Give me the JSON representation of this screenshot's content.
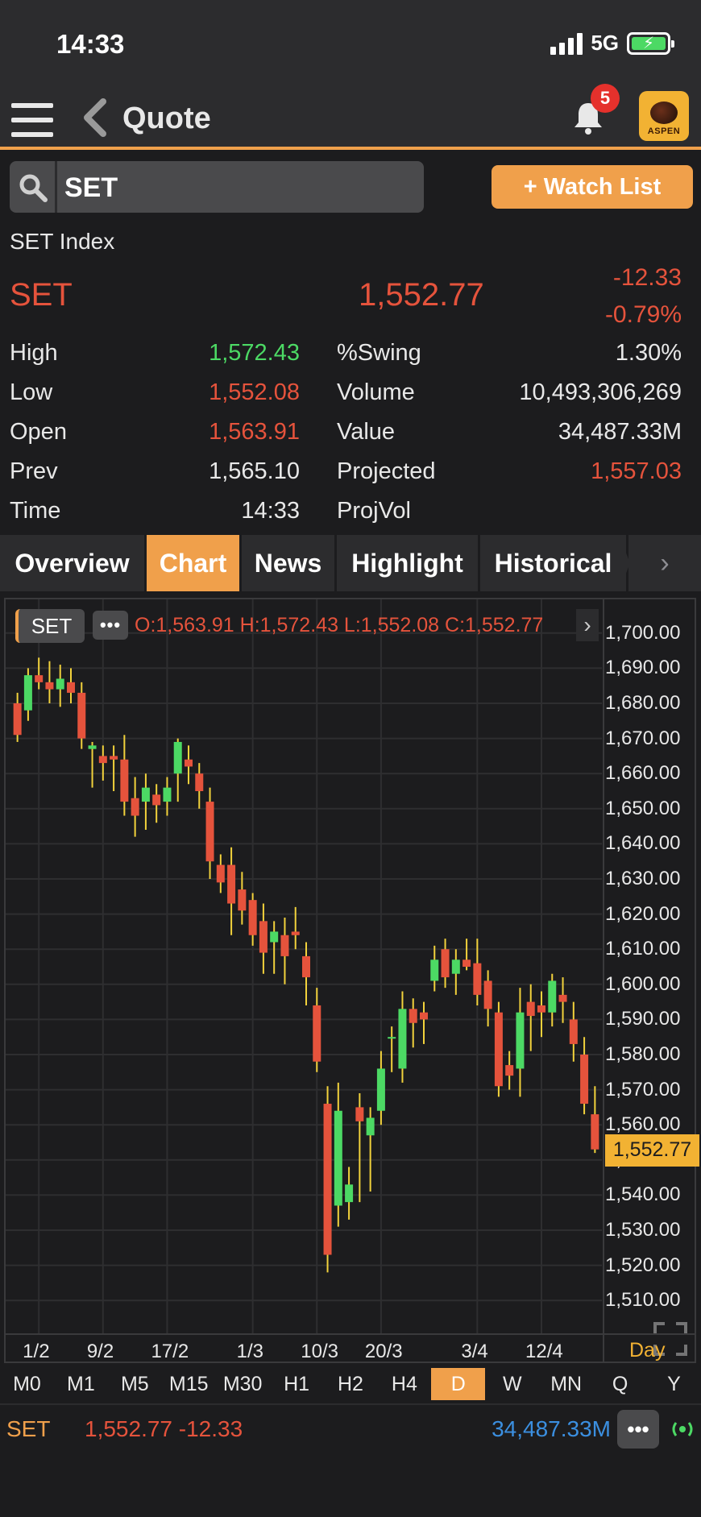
{
  "status_bar": {
    "time": "14:33",
    "network": "5G"
  },
  "header": {
    "title": "Quote",
    "notification_count": "5",
    "logo_text": "ASPEN"
  },
  "search": {
    "value": "SET"
  },
  "watch_list_label": "+ Watch List",
  "quote": {
    "index_name": "SET Index",
    "symbol": "SET",
    "last": "1,552.77",
    "change": "-12.33",
    "change_pct": "-0.79%"
  },
  "stats": {
    "left": [
      {
        "label": "High",
        "value": "1,572.43",
        "color": "#4cd964"
      },
      {
        "label": "Low",
        "value": "1,552.08",
        "color": "#e5533c"
      },
      {
        "label": "Open",
        "value": "1,563.91",
        "color": "#e5533c"
      },
      {
        "label": "Prev",
        "value": "1,565.10",
        "color": "#e8e8e8"
      },
      {
        "label": "Time",
        "value": "14:33",
        "color": "#e8e8e8"
      }
    ],
    "right": [
      {
        "label": "%Swing",
        "value": "1.30%",
        "color": "#e8e8e8"
      },
      {
        "label": "Volume",
        "value": "10,493,306,269",
        "color": "#e8e8e8"
      },
      {
        "label": "Value",
        "value": "34,487.33M",
        "color": "#e8e8e8"
      },
      {
        "label": "Projected",
        "value": "1,557.03",
        "color": "#e5533c"
      },
      {
        "label": "ProjVol",
        "value": "",
        "color": "#e8e8e8"
      }
    ]
  },
  "tabs": [
    "Overview",
    "Chart",
    "News",
    "Highlight",
    "Historical"
  ],
  "active_tab": "Chart",
  "chart_header": {
    "symbol": "SET",
    "ohlc": "O:1,563.91  H:1,572.43  L:1,552.08  C:1,552.77"
  },
  "colors": {
    "up": "#4cd964",
    "down": "#e5533c",
    "accent": "#f0a04b",
    "wick": "#f2d23c"
  },
  "chart_data": {
    "type": "candlestick",
    "ylim": [
      1505,
      1705
    ],
    "yticks": [
      "1,700.00",
      "1,690.00",
      "1,680.00",
      "1,670.00",
      "1,660.00",
      "1,650.00",
      "1,640.00",
      "1,630.00",
      "1,620.00",
      "1,610.00",
      "1,600.00",
      "1,590.00",
      "1,580.00",
      "1,570.00",
      "1,560.00",
      "1,550.00",
      "1,540.00",
      "1,530.00",
      "1,520.00",
      "1,510.00"
    ],
    "xticks": [
      {
        "label": "1/2",
        "index": 2
      },
      {
        "label": "9/2",
        "index": 8
      },
      {
        "label": "17/2",
        "index": 14
      },
      {
        "label": "1/3",
        "index": 22
      },
      {
        "label": "10/3",
        "index": 28
      },
      {
        "label": "20/3",
        "index": 34
      },
      {
        "label": "3/4",
        "index": 43
      },
      {
        "label": "12/4",
        "index": 49
      }
    ],
    "last_price": "1,552.77",
    "last_value": 1552.77,
    "interval_label": "Day",
    "candles": [
      [
        1680,
        1683,
        1669,
        1671
      ],
      [
        1678,
        1690,
        1675,
        1688
      ],
      [
        1688,
        1693,
        1684,
        1686
      ],
      [
        1686,
        1692,
        1680,
        1684
      ],
      [
        1684,
        1691,
        1679,
        1687
      ],
      [
        1686,
        1690,
        1680,
        1683
      ],
      [
        1683,
        1686,
        1667,
        1670
      ],
      [
        1667,
        1669,
        1656,
        1668
      ],
      [
        1665,
        1668,
        1658,
        1663
      ],
      [
        1665,
        1668,
        1655,
        1664
      ],
      [
        1664,
        1671,
        1648,
        1652
      ],
      [
        1653,
        1659,
        1642,
        1648
      ],
      [
        1652,
        1660,
        1644,
        1656
      ],
      [
        1654,
        1657,
        1646,
        1651
      ],
      [
        1652,
        1659,
        1648,
        1656
      ],
      [
        1660,
        1670,
        1652,
        1669
      ],
      [
        1664,
        1668,
        1657,
        1662
      ],
      [
        1660,
        1663,
        1650,
        1655
      ],
      [
        1652,
        1656,
        1630,
        1635
      ],
      [
        1634,
        1637,
        1626,
        1629
      ],
      [
        1634,
        1639,
        1614,
        1623
      ],
      [
        1627,
        1632,
        1617,
        1621
      ],
      [
        1624,
        1626,
        1611,
        1614
      ],
      [
        1618,
        1623,
        1603,
        1609
      ],
      [
        1612,
        1618,
        1603,
        1615
      ],
      [
        1614,
        1619,
        1600,
        1608
      ],
      [
        1615,
        1622,
        1610,
        1614
      ],
      [
        1608,
        1612,
        1594,
        1602
      ],
      [
        1594,
        1599,
        1575,
        1578
      ],
      [
        1566,
        1571,
        1518,
        1523
      ],
      [
        1537,
        1572,
        1531,
        1564
      ],
      [
        1538,
        1548,
        1533,
        1543
      ],
      [
        1565,
        1569,
        1538,
        1561
      ],
      [
        1557,
        1565,
        1541,
        1562
      ],
      [
        1564,
        1581,
        1560,
        1576
      ],
      [
        1585,
        1588,
        1575,
        1585
      ],
      [
        1576,
        1598,
        1572,
        1593
      ],
      [
        1593,
        1596,
        1582,
        1589
      ],
      [
        1592,
        1595,
        1583,
        1590
      ],
      [
        1601,
        1611,
        1598,
        1607
      ],
      [
        1610,
        1613,
        1599,
        1602
      ],
      [
        1603,
        1610,
        1597,
        1607
      ],
      [
        1607,
        1613,
        1604,
        1605
      ],
      [
        1606,
        1613,
        1594,
        1597
      ],
      [
        1601,
        1604,
        1588,
        1593
      ],
      [
        1592,
        1595,
        1568,
        1571
      ],
      [
        1577,
        1581,
        1570,
        1574
      ],
      [
        1576,
        1599,
        1568,
        1592
      ],
      [
        1595,
        1600,
        1581,
        1591
      ],
      [
        1594,
        1598,
        1585,
        1592
      ],
      [
        1592,
        1603,
        1588,
        1601
      ],
      [
        1597,
        1602,
        1589,
        1595
      ],
      [
        1590,
        1595,
        1578,
        1583
      ],
      [
        1580,
        1585,
        1563,
        1566
      ],
      [
        1563,
        1571,
        1552,
        1553
      ]
    ]
  },
  "timeframes": [
    "M0",
    "M1",
    "M5",
    "M15",
    "M30",
    "H1",
    "H2",
    "H4",
    "D",
    "W",
    "MN",
    "Q",
    "Y"
  ],
  "active_timeframe": "D",
  "bottom_bar": {
    "symbol": "SET",
    "price_change": "1,552.77 -12.33",
    "value": "34,487.33M"
  }
}
